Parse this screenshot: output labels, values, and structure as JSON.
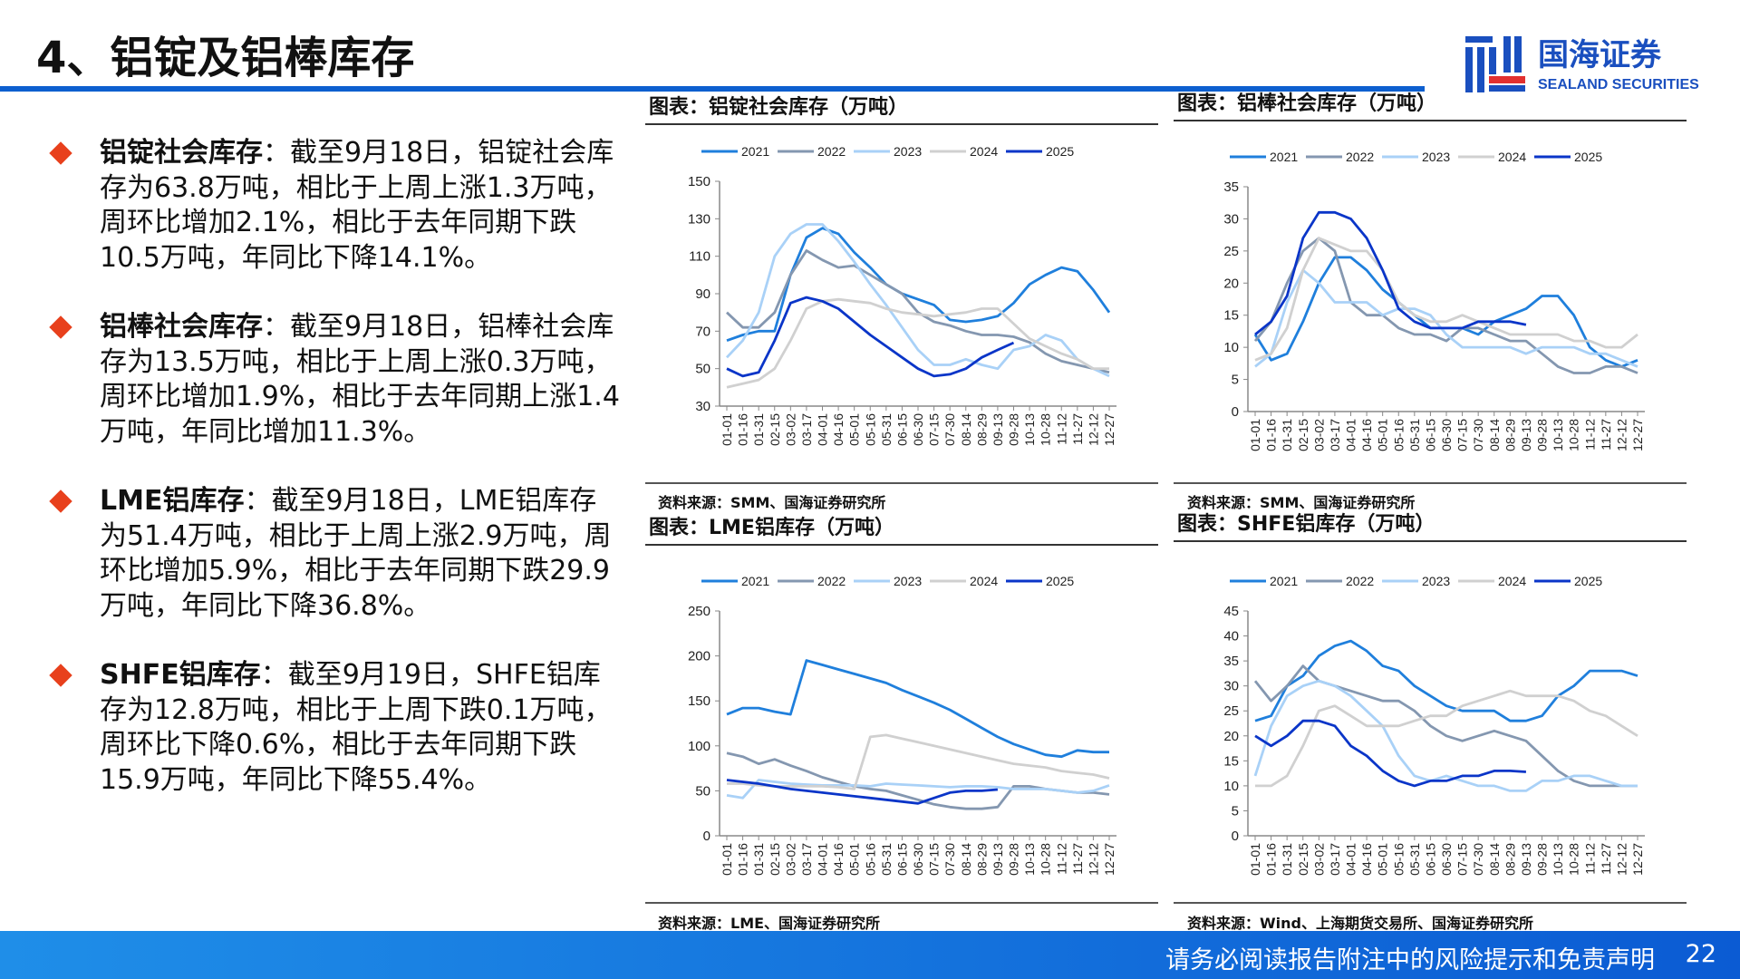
{
  "header": {
    "title": "4、铝锭及铝棒库存",
    "logo_text_cn": "国海证券",
    "logo_text_en": "SEALAND SECURITIES"
  },
  "bullets": [
    {
      "label": "铝锭社会库存",
      "text": "：截至9月18日，铝锭社会库存为63.8万吨，相比于上周上涨1.3万吨，周环比增加2.1%，相比于去年同期下跌10.5万吨，年同比下降14.1%。"
    },
    {
      "label": "铝棒社会库存",
      "text": "：截至9月18日，铝棒社会库存为13.5万吨，相比于上周上涨0.3万吨，周环比增加1.9%，相比于去年同期上涨1.4万吨，年同比增加11.3%。"
    },
    {
      "label": "LME铝库存",
      "text": "：截至9月18日，LME铝库存为51.4万吨，相比于上周上涨2.9万吨，周环比增加5.9%，相比于去年同期下跌29.9万吨，年同比下降36.8%。"
    },
    {
      "label": "SHFE铝库存",
      "text": "：截至9月19日，SHFE铝库存为12.8万吨，相比于上周下跌0.1万吨，周环比下降0.6%，相比于去年同期下跌15.9万吨，年同比下降55.4%。"
    }
  ],
  "colors": {
    "2021": "#1f7fdc",
    "2022": "#8497b0",
    "2023": "#a9d1f7",
    "2024": "#d0d0d0",
    "2025": "#0a35c8",
    "accent": "#0d5fcf",
    "bullet": "#e8401c"
  },
  "x_ticks": [
    "01-01",
    "01-16",
    "01-31",
    "02-15",
    "03-02",
    "03-17",
    "04-01",
    "04-16",
    "05-01",
    "05-16",
    "05-31",
    "06-15",
    "06-30",
    "07-15",
    "07-30",
    "08-14",
    "08-29",
    "09-13",
    "09-28",
    "10-13",
    "10-28",
    "11-12",
    "11-27",
    "12-12",
    "12-27"
  ],
  "chart_data": [
    {
      "type": "line",
      "title": "图表：铝锭社会库存（万吨）",
      "source": "资料来源：SMM、国海证券研究所",
      "ylim": [
        30,
        150
      ],
      "yticks": [
        30,
        50,
        70,
        90,
        110,
        130,
        150
      ],
      "series": [
        {
          "name": "2021",
          "values": [
            65,
            68,
            70,
            70,
            100,
            120,
            125,
            122,
            112,
            104,
            95,
            90,
            87,
            84,
            76,
            75,
            76,
            78,
            85,
            95,
            100,
            104,
            102,
            92,
            80
          ]
        },
        {
          "name": "2022",
          "values": [
            80,
            72,
            72,
            80,
            100,
            113,
            108,
            104,
            105,
            100,
            95,
            90,
            80,
            75,
            73,
            70,
            68,
            68,
            67,
            64,
            58,
            54,
            52,
            50,
            48
          ]
        },
        {
          "name": "2023",
          "values": [
            56,
            65,
            80,
            110,
            122,
            127,
            127,
            118,
            107,
            95,
            84,
            72,
            60,
            52,
            52,
            55,
            52,
            50,
            60,
            62,
            68,
            65,
            55,
            50,
            46
          ]
        },
        {
          "name": "2024",
          "values": [
            40,
            42,
            44,
            50,
            65,
            82,
            86,
            87,
            86,
            85,
            82,
            80,
            79,
            78,
            79,
            80,
            82,
            82,
            74,
            66,
            62,
            58,
            55,
            50,
            50
          ]
        },
        {
          "name": "2025",
          "values": [
            50,
            46,
            48,
            65,
            85,
            88,
            86,
            82,
            75,
            68,
            62,
            56,
            50,
            46,
            47,
            50,
            56,
            60,
            63.8
          ]
        }
      ]
    },
    {
      "type": "line",
      "title": "图表：铝棒社会库存（万吨）",
      "source": "资料来源：SMM、国海证券研究所",
      "ylim": [
        0,
        35
      ],
      "yticks": [
        0,
        5,
        10,
        15,
        20,
        25,
        30,
        35
      ],
      "series": [
        {
          "name": "2021",
          "values": [
            12,
            8,
            9,
            14,
            20,
            24,
            24,
            22,
            19,
            17,
            15,
            13,
            13,
            13,
            12,
            14,
            15,
            16,
            18,
            18,
            15,
            10,
            8,
            7,
            8
          ]
        },
        {
          "name": "2022",
          "values": [
            11,
            14,
            20,
            25,
            27,
            25,
            17,
            15,
            15,
            13,
            12,
            12,
            11,
            13,
            13,
            12,
            11,
            11,
            9,
            7,
            6,
            6,
            7,
            7,
            6
          ]
        },
        {
          "name": "2023",
          "values": [
            7,
            9,
            17,
            22,
            20,
            17,
            17,
            17,
            15,
            16,
            16,
            15,
            12,
            10,
            10,
            10,
            10,
            9,
            10,
            10,
            10,
            9,
            9,
            8,
            7
          ]
        },
        {
          "name": "2024",
          "values": [
            8,
            9,
            13,
            22,
            27,
            26,
            25,
            25,
            22,
            17,
            15,
            14,
            14,
            15,
            14,
            13,
            12,
            12,
            12,
            12,
            11,
            11,
            10,
            10,
            12
          ]
        },
        {
          "name": "2025",
          "values": [
            12,
            14,
            18,
            27,
            31,
            31,
            30,
            27,
            22,
            16,
            14,
            13,
            13,
            13,
            14,
            14,
            14,
            13.5
          ]
        }
      ]
    },
    {
      "type": "line",
      "title": "图表：LME铝库存（万吨）",
      "source": "资料来源：LME、国海证券研究所",
      "ylim": [
        0,
        250
      ],
      "yticks": [
        0,
        50,
        100,
        150,
        200,
        250
      ],
      "series": [
        {
          "name": "2021",
          "values": [
            135,
            142,
            142,
            138,
            135,
            195,
            190,
            185,
            180,
            175,
            170,
            162,
            155,
            148,
            140,
            130,
            120,
            110,
            102,
            96,
            90,
            88,
            95,
            93,
            93
          ]
        },
        {
          "name": "2022",
          "values": [
            92,
            88,
            80,
            85,
            78,
            72,
            65,
            60,
            55,
            52,
            50,
            45,
            40,
            35,
            32,
            30,
            30,
            32,
            55,
            55,
            52,
            50,
            48,
            48,
            46
          ]
        },
        {
          "name": "2023",
          "values": [
            45,
            42,
            62,
            60,
            58,
            57,
            56,
            56,
            56,
            55,
            58,
            57,
            56,
            55,
            54,
            55,
            55,
            54,
            52,
            52,
            52,
            50,
            48,
            50,
            56
          ]
        },
        {
          "name": "2024",
          "values": [
            58,
            58,
            56,
            55,
            55,
            55,
            55,
            54,
            52,
            110,
            112,
            108,
            104,
            100,
            96,
            92,
            88,
            84,
            80,
            78,
            76,
            72,
            70,
            68,
            64
          ]
        },
        {
          "name": "2025",
          "values": [
            62,
            60,
            58,
            55,
            52,
            50,
            48,
            46,
            44,
            42,
            40,
            38,
            36,
            42,
            48,
            50,
            50,
            51.4
          ]
        }
      ]
    },
    {
      "type": "line",
      "title": "图表：SHFE铝库存（万吨）",
      "source": "资料来源：Wind、上海期货交易所、国海证券研究所",
      "ylim": [
        0,
        45
      ],
      "yticks": [
        0,
        5,
        10,
        15,
        20,
        25,
        30,
        35,
        40,
        45
      ],
      "series": [
        {
          "name": "2021",
          "values": [
            23,
            24,
            30,
            32,
            36,
            38,
            39,
            37,
            34,
            33,
            30,
            28,
            26,
            25,
            25,
            25,
            23,
            23,
            24,
            28,
            30,
            33,
            33,
            33,
            32
          ]
        },
        {
          "name": "2022",
          "values": [
            31,
            27,
            30,
            34,
            31,
            30,
            29,
            28,
            27,
            27,
            25,
            22,
            20,
            19,
            20,
            21,
            20,
            19,
            16,
            13,
            11,
            10,
            10,
            10,
            10
          ]
        },
        {
          "name": "2023",
          "values": [
            12,
            22,
            28,
            30,
            31,
            30,
            28,
            25,
            22,
            16,
            12,
            11,
            12,
            11,
            10,
            10,
            9,
            9,
            11,
            11,
            12,
            12,
            11,
            10,
            10
          ]
        },
        {
          "name": "2024",
          "values": [
            10,
            10,
            12,
            18,
            25,
            26,
            24,
            22,
            22,
            22,
            23,
            24,
            24,
            26,
            27,
            28,
            29,
            28,
            28,
            28,
            27,
            25,
            24,
            22,
            20
          ]
        },
        {
          "name": "2025",
          "values": [
            20,
            18,
            20,
            23,
            23,
            22,
            18,
            16,
            13,
            11,
            10,
            11,
            11,
            12,
            12,
            13,
            13,
            12.8
          ]
        }
      ]
    }
  ],
  "footer": {
    "disclaimer": "请务必阅读报告附注中的风险提示和免责声明",
    "page": "22"
  }
}
